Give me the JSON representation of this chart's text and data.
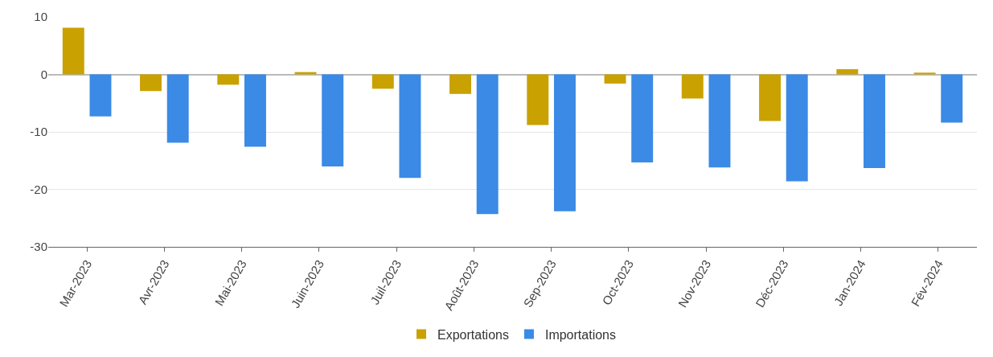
{
  "chart_data": {
    "type": "bar",
    "categories": [
      "Mar-2023",
      "Avr-2023",
      "Mai-2023",
      "Juin-2023",
      "Juil-2023",
      "Août-2023",
      "Sep-2023",
      "Oct-2023",
      "Nov-2023",
      "Déc-2023",
      "Jan-2024",
      "Fév-2024"
    ],
    "series": [
      {
        "name": "Exportations",
        "color": "#c9a100",
        "values": [
          8.1,
          -2.9,
          -1.8,
          0.4,
          -2.5,
          -3.4,
          -8.8,
          -1.6,
          -4.2,
          -8.1,
          0.9,
          0.3
        ]
      },
      {
        "name": "Importations",
        "color": "#3a8ae6",
        "values": [
          -7.3,
          -11.9,
          -12.6,
          -16.0,
          -18.0,
          -24.3,
          -23.8,
          -15.3,
          -16.2,
          -18.6,
          -16.3,
          -8.4
        ]
      }
    ],
    "ylim": [
      -30,
      10
    ],
    "yticks": [
      -30,
      -20,
      -10,
      0,
      10
    ],
    "grid": "y",
    "legend": "bottom"
  }
}
